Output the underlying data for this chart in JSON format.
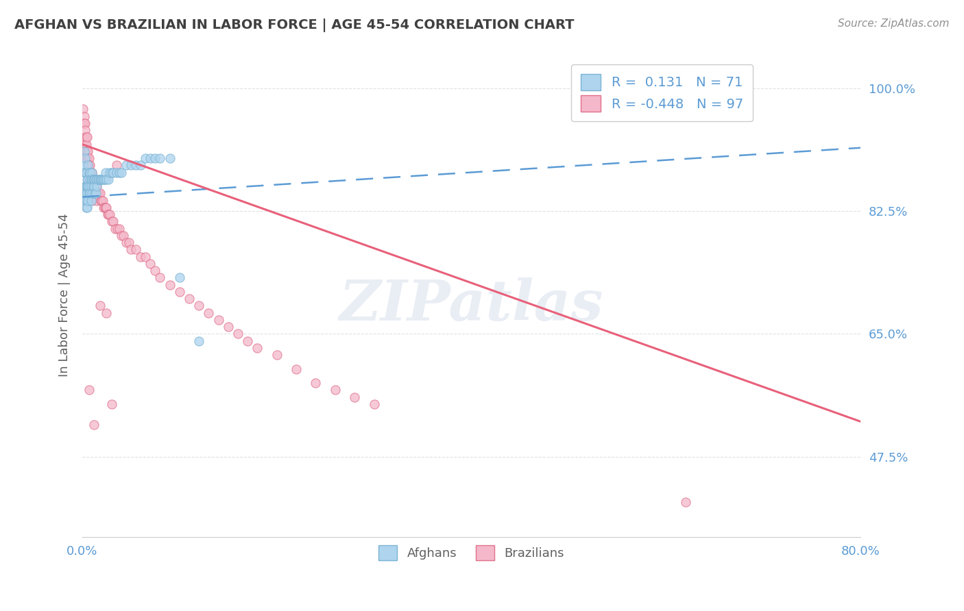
{
  "title": "AFGHAN VS BRAZILIAN IN LABOR FORCE | AGE 45-54 CORRELATION CHART",
  "source_text": "Source: ZipAtlas.com",
  "ylabel": "In Labor Force | Age 45-54",
  "xlim": [
    0.0,
    0.8
  ],
  "ylim": [
    0.36,
    1.05
  ],
  "xtick_positions": [
    0.0,
    0.2,
    0.4,
    0.6,
    0.8
  ],
  "xticklabels": [
    "0.0%",
    "",
    "",
    "",
    "80.0%"
  ],
  "ytick_positions": [
    0.475,
    0.65,
    0.825,
    1.0
  ],
  "ytick_labels": [
    "47.5%",
    "65.0%",
    "82.5%",
    "100.0%"
  ],
  "afghan_R": 0.131,
  "afghan_N": 71,
  "brazilian_R": -0.448,
  "brazilian_N": 97,
  "afghan_color": "#aed4ee",
  "afghan_edge": "#7ab3d4",
  "brazilian_color": "#f4b8ca",
  "brazilian_edge": "#e0708a",
  "afghan_line_color": "#5b9bd5",
  "brazilian_line_color": "#e8607a",
  "legend_label_afghan": "Afghans",
  "legend_label_brazilian": "Brazilians",
  "watermark": "ZIPatlas",
  "background_color": "#ffffff",
  "grid_color": "#e0e0e0",
  "title_color": "#404040",
  "tick_color": "#5b9bd5",
  "ylabel_color": "#606060",
  "source_color": "#909090",
  "legend_text_color": "#5b9bd5",
  "afghan_x": [
    0.001,
    0.002,
    0.002,
    0.002,
    0.003,
    0.003,
    0.003,
    0.003,
    0.004,
    0.004,
    0.004,
    0.004,
    0.004,
    0.005,
    0.005,
    0.005,
    0.005,
    0.006,
    0.006,
    0.006,
    0.006,
    0.007,
    0.007,
    0.007,
    0.008,
    0.008,
    0.008,
    0.009,
    0.009,
    0.009,
    0.01,
    0.01,
    0.01,
    0.011,
    0.011,
    0.012,
    0.012,
    0.013,
    0.013,
    0.014,
    0.014,
    0.015,
    0.015,
    0.016,
    0.017,
    0.018,
    0.019,
    0.02,
    0.021,
    0.022,
    0.023,
    0.024,
    0.025,
    0.027,
    0.028,
    0.03,
    0.032,
    0.035,
    0.038,
    0.04,
    0.045,
    0.05,
    0.055,
    0.06,
    0.065,
    0.07,
    0.075,
    0.08,
    0.09,
    0.1,
    0.12
  ],
  "afghan_y": [
    0.89,
    0.91,
    0.88,
    0.86,
    0.9,
    0.88,
    0.86,
    0.84,
    0.88,
    0.86,
    0.85,
    0.84,
    0.83,
    0.87,
    0.86,
    0.85,
    0.83,
    0.89,
    0.87,
    0.86,
    0.84,
    0.88,
    0.86,
    0.85,
    0.88,
    0.87,
    0.85,
    0.87,
    0.86,
    0.84,
    0.88,
    0.87,
    0.85,
    0.87,
    0.86,
    0.87,
    0.86,
    0.87,
    0.85,
    0.87,
    0.85,
    0.87,
    0.86,
    0.87,
    0.87,
    0.87,
    0.87,
    0.87,
    0.87,
    0.87,
    0.87,
    0.88,
    0.87,
    0.87,
    0.88,
    0.88,
    0.88,
    0.88,
    0.88,
    0.88,
    0.89,
    0.89,
    0.89,
    0.89,
    0.9,
    0.9,
    0.9,
    0.9,
    0.9,
    0.73,
    0.64
  ],
  "brazilian_x": [
    0.001,
    0.001,
    0.002,
    0.002,
    0.002,
    0.003,
    0.003,
    0.003,
    0.003,
    0.004,
    0.004,
    0.004,
    0.004,
    0.004,
    0.005,
    0.005,
    0.005,
    0.005,
    0.005,
    0.006,
    0.006,
    0.006,
    0.006,
    0.007,
    0.007,
    0.007,
    0.007,
    0.008,
    0.008,
    0.008,
    0.009,
    0.009,
    0.009,
    0.01,
    0.01,
    0.01,
    0.011,
    0.011,
    0.012,
    0.012,
    0.013,
    0.013,
    0.014,
    0.015,
    0.015,
    0.016,
    0.017,
    0.018,
    0.019,
    0.02,
    0.021,
    0.022,
    0.023,
    0.024,
    0.025,
    0.026,
    0.027,
    0.028,
    0.03,
    0.032,
    0.034,
    0.036,
    0.038,
    0.04,
    0.042,
    0.045,
    0.048,
    0.05,
    0.055,
    0.06,
    0.065,
    0.07,
    0.075,
    0.08,
    0.09,
    0.1,
    0.11,
    0.12,
    0.13,
    0.14,
    0.15,
    0.16,
    0.17,
    0.18,
    0.2,
    0.22,
    0.24,
    0.26,
    0.28,
    0.3,
    0.007,
    0.012,
    0.018,
    0.025,
    0.03,
    0.62,
    0.035
  ],
  "brazilian_y": [
    0.97,
    0.95,
    0.96,
    0.95,
    0.93,
    0.95,
    0.94,
    0.92,
    0.9,
    0.93,
    0.92,
    0.91,
    0.9,
    0.88,
    0.93,
    0.91,
    0.9,
    0.88,
    0.86,
    0.91,
    0.9,
    0.88,
    0.86,
    0.9,
    0.89,
    0.87,
    0.85,
    0.89,
    0.87,
    0.85,
    0.88,
    0.87,
    0.85,
    0.88,
    0.86,
    0.84,
    0.87,
    0.86,
    0.87,
    0.85,
    0.86,
    0.85,
    0.86,
    0.86,
    0.84,
    0.85,
    0.85,
    0.85,
    0.84,
    0.84,
    0.84,
    0.83,
    0.83,
    0.83,
    0.83,
    0.82,
    0.82,
    0.82,
    0.81,
    0.81,
    0.8,
    0.8,
    0.8,
    0.79,
    0.79,
    0.78,
    0.78,
    0.77,
    0.77,
    0.76,
    0.76,
    0.75,
    0.74,
    0.73,
    0.72,
    0.71,
    0.7,
    0.69,
    0.68,
    0.67,
    0.66,
    0.65,
    0.64,
    0.63,
    0.62,
    0.6,
    0.58,
    0.57,
    0.56,
    0.55,
    0.57,
    0.52,
    0.69,
    0.68,
    0.55,
    0.41,
    0.89
  ],
  "afghan_trend_x": [
    0.0,
    0.8
  ],
  "afghan_trend_y": [
    0.845,
    0.915
  ],
  "brazilian_trend_x": [
    0.0,
    0.8
  ],
  "brazilian_trend_y": [
    0.92,
    0.525
  ]
}
